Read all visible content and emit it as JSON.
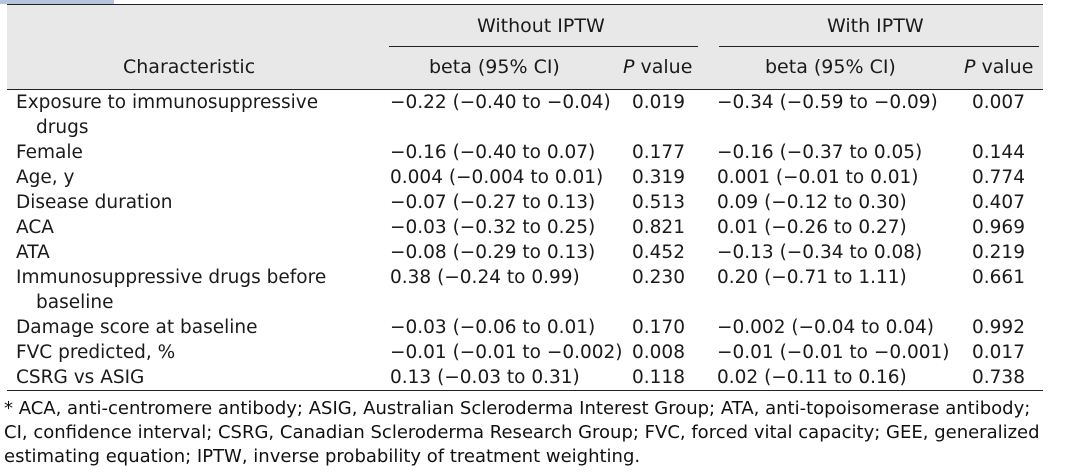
{
  "header": {
    "groups": [
      "Without IPTW",
      "With IPTW"
    ],
    "characteristic": "Characteristic",
    "beta": "beta (95% CI)",
    "p_italic": "P",
    "p_rest": " value"
  },
  "rows": [
    {
      "char": "Exposure to immunosuppressive",
      "cont": "drugs",
      "b1": "−0.22 (−0.40 to −0.04)",
      "p1": "0.019",
      "b2": "−0.34 (−0.59 to −0.09)",
      "p2": "0.007"
    },
    {
      "char": "Female",
      "b1": "−0.16 (−0.40 to 0.07)",
      "p1": "0.177",
      "b2": "−0.16 (−0.37 to 0.05)",
      "p2": "0.144"
    },
    {
      "char": "Age, y",
      "b1": "0.004 (−0.004 to 0.01)",
      "p1": "0.319",
      "b2": "0.001 (−0.01 to 0.01)",
      "p2": "0.774"
    },
    {
      "char": "Disease duration",
      "b1": "−0.07 (−0.27 to 0.13)",
      "p1": "0.513",
      "b2": "0.09 (−0.12 to 0.30)",
      "p2": "0.407"
    },
    {
      "char": "ACA",
      "b1": "−0.03 (−0.32 to 0.25)",
      "p1": "0.821",
      "b2": "0.01 (−0.26 to 0.27)",
      "p2": "0.969"
    },
    {
      "char": "ATA",
      "b1": "−0.08 (−0.29 to 0.13)",
      "p1": "0.452",
      "b2": "−0.13 (−0.34 to 0.08)",
      "p2": "0.219"
    },
    {
      "char": "Immunosuppressive drugs before",
      "cont": "baseline",
      "b1": "0.38 (−0.24 to 0.99)",
      "p1": "0.230",
      "b2": "0.20 (−0.71 to 1.11)",
      "p2": "0.661"
    },
    {
      "char": "Damage score at baseline",
      "b1": "−0.03 (−0.06 to 0.01)",
      "p1": "0.170",
      "b2": "−0.002 (−0.04 to 0.04)",
      "p2": "0.992"
    },
    {
      "char": "FVC predicted, %",
      "b1": "−0.01 (−0.01 to −0.002)",
      "p1": "0.008",
      "b2": "−0.01 (−0.01 to −0.001)",
      "p2": "0.017"
    },
    {
      "char": "CSRG vs ASIG",
      "b1": "0.13 (−0.03 to 0.31)",
      "p1": "0.118",
      "b2": "0.02 (−0.11 to 0.16)",
      "p2": "0.738"
    }
  ],
  "footnote": {
    "lines": [
      "* ACA, anti-centromere antibody; ASIG, Australian Scleroderma Interest Group; ATA, anti-topoisomerase antibody;",
      "CI, confidence interval; CSRG, Canadian Scleroderma Research Group; FVC, forced vital capacity; GEE, generalized",
      "estimating equation; IPTW, inverse probability of treatment weighting."
    ]
  }
}
